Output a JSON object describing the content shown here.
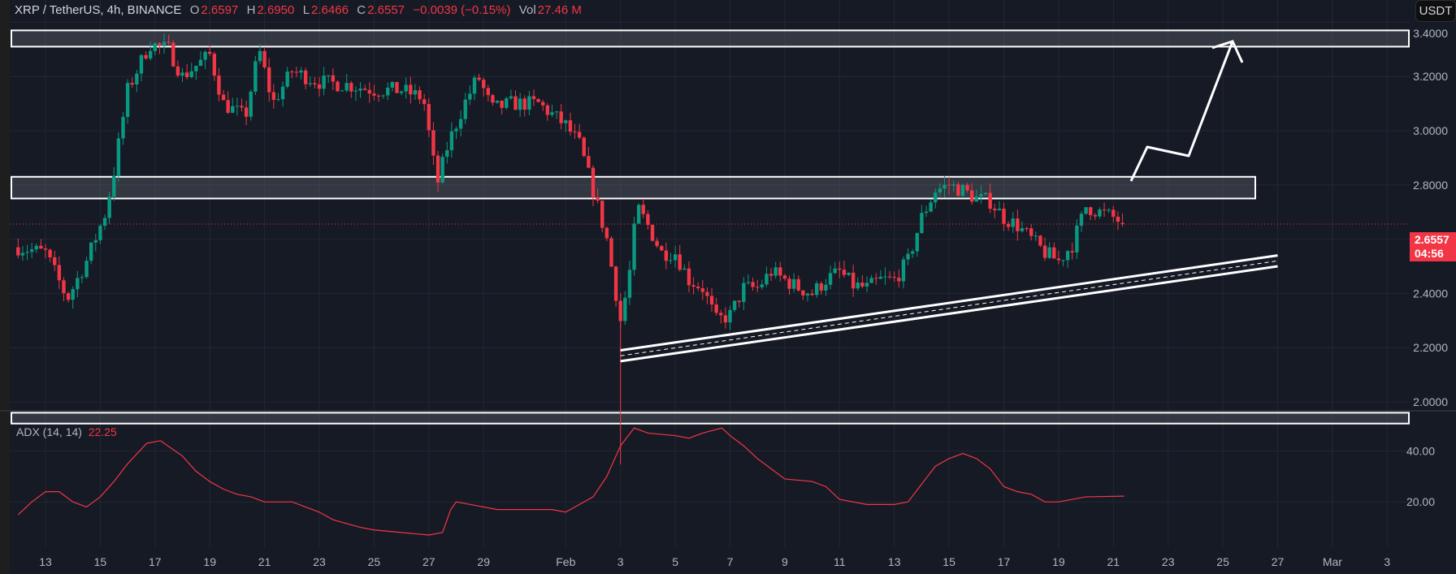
{
  "header": {
    "symbol": "XRP / TetherUS, 4h, BINANCE",
    "o_label": "O",
    "open": "2.6597",
    "h_label": "H",
    "high": "2.6950",
    "l_label": "L",
    "low": "2.6466",
    "c_label": "C",
    "close": "2.6557",
    "change": "−0.0039 (−0.15%)",
    "vol_label": "Vol",
    "volume": "27.46 M"
  },
  "currency_button": "USDT",
  "last_price": {
    "value": "2.6557",
    "countdown": "04:56"
  },
  "indicator": {
    "label": "ADX (14, 14)",
    "value": "22.25"
  },
  "colors": {
    "up": "#089981",
    "down": "#f23645",
    "adx": "#f23645",
    "bg": "#161a25",
    "grid": "#232734"
  },
  "chart_data": [
    {
      "type": "candlestick",
      "interval": "4h",
      "note": "approximate close path (day number: Jan d = d, Feb d = 31+d)",
      "close_path": [
        [
          12,
          2.57
        ],
        [
          13,
          2.55
        ],
        [
          13.8,
          2.38
        ],
        [
          14.5,
          2.52
        ],
        [
          15.2,
          2.7
        ],
        [
          15.5,
          2.85
        ],
        [
          16,
          3.15
        ],
        [
          16.8,
          3.32
        ],
        [
          17.5,
          3.3
        ],
        [
          18,
          3.2
        ],
        [
          19,
          3.28
        ],
        [
          19.5,
          3.1
        ],
        [
          20.3,
          3.05
        ],
        [
          20.8,
          3.3
        ],
        [
          21.3,
          3.1
        ],
        [
          22,
          3.22
        ],
        [
          23,
          3.18
        ],
        [
          24,
          3.17
        ],
        [
          25,
          3.15
        ],
        [
          26,
          3.15
        ],
        [
          26.8,
          3.12
        ],
        [
          27.3,
          2.8
        ],
        [
          27.7,
          2.95
        ],
        [
          28.3,
          3.1
        ],
        [
          28.8,
          3.2
        ],
        [
          29.3,
          3.08
        ],
        [
          30,
          3.1
        ],
        [
          31,
          3.1
        ],
        [
          32,
          3.02
        ],
        [
          32.5,
          2.95
        ],
        [
          33,
          2.78
        ],
        [
          33.5,
          2.6
        ],
        [
          34,
          2.3
        ],
        [
          34.3,
          2.45
        ],
        [
          34.6,
          2.72
        ],
        [
          35,
          2.65
        ],
        [
          35.5,
          2.55
        ],
        [
          36,
          2.55
        ],
        [
          36.5,
          2.45
        ],
        [
          37,
          2.42
        ],
        [
          37.5,
          2.3
        ],
        [
          38,
          2.32
        ],
        [
          38.5,
          2.42
        ],
        [
          39,
          2.42
        ],
        [
          39.5,
          2.48
        ],
        [
          40,
          2.45
        ],
        [
          40.5,
          2.42
        ],
        [
          41,
          2.4
        ],
        [
          41.5,
          2.45
        ],
        [
          42,
          2.48
        ],
        [
          42.5,
          2.43
        ],
        [
          43,
          2.42
        ],
        [
          43.5,
          2.45
        ],
        [
          44,
          2.45
        ],
        [
          44.5,
          2.52
        ],
        [
          45,
          2.68
        ],
        [
          45.5,
          2.78
        ],
        [
          46,
          2.8
        ],
        [
          46.5,
          2.78
        ],
        [
          47,
          2.75
        ],
        [
          47.5,
          2.74
        ],
        [
          48,
          2.68
        ],
        [
          48.5,
          2.65
        ],
        [
          49,
          2.6
        ],
        [
          49.5,
          2.55
        ],
        [
          50,
          2.52
        ],
        [
          50.5,
          2.58
        ],
        [
          51,
          2.72
        ],
        [
          51.5,
          2.7
        ],
        [
          52,
          2.68
        ],
        [
          52.4,
          2.6557
        ]
      ],
      "y_ticks": [
        "3.4000",
        "3.2000",
        "3.0000",
        "2.8000",
        "2.4000",
        "2.2000",
        "2.0000"
      ],
      "y_tick_values": [
        3.4,
        3.2,
        3.0,
        2.8,
        2.4,
        2.2,
        2.0
      ],
      "x_ticks": [
        "13",
        "15",
        "17",
        "19",
        "21",
        "23",
        "25",
        "27",
        "29",
        "Feb",
        "3",
        "5",
        "7",
        "9",
        "11",
        "13",
        "15",
        "17",
        "19",
        "21",
        "23",
        "25",
        "27",
        "Mar",
        "3"
      ],
      "x_tick_days": [
        13,
        15,
        17,
        19,
        21,
        23,
        25,
        27,
        29,
        32,
        34,
        36,
        38,
        40,
        42,
        44,
        46,
        48,
        50,
        52,
        54,
        56,
        58,
        60,
        62
      ],
      "zones": [
        [
          3.31,
          3.37
        ],
        [
          2.75,
          2.83
        ],
        [
          1.92,
          1.96
        ]
      ],
      "trend_channel": {
        "start_day": 34,
        "end_day": 58,
        "upper": [
          2.19,
          2.54
        ],
        "lower": [
          2.15,
          2.5
        ]
      }
    },
    {
      "type": "line",
      "name": "ADX (14, 14)",
      "y_ticks": [
        "40.00",
        "20.00"
      ],
      "y_tick_values": [
        40,
        20
      ],
      "points": [
        [
          12,
          15
        ],
        [
          12.5,
          20
        ],
        [
          13,
          24
        ],
        [
          13.5,
          24
        ],
        [
          14,
          20
        ],
        [
          14.5,
          18
        ],
        [
          15,
          22
        ],
        [
          15.5,
          28
        ],
        [
          16,
          35
        ],
        [
          16.7,
          43
        ],
        [
          17.2,
          44
        ],
        [
          18,
          38
        ],
        [
          18.5,
          32
        ],
        [
          19,
          28
        ],
        [
          19.5,
          25
        ],
        [
          20,
          23
        ],
        [
          20.5,
          22
        ],
        [
          21,
          20
        ],
        [
          22,
          20
        ],
        [
          23,
          16
        ],
        [
          23.5,
          13
        ],
        [
          24.5,
          10
        ],
        [
          25,
          9
        ],
        [
          26,
          8
        ],
        [
          27,
          7
        ],
        [
          27.5,
          8
        ],
        [
          27.8,
          17
        ],
        [
          28,
          20
        ],
        [
          28.5,
          19
        ],
        [
          29.5,
          17
        ],
        [
          30.5,
          17
        ],
        [
          31.5,
          17
        ],
        [
          32,
          16
        ],
        [
          33,
          22
        ],
        [
          33.5,
          30
        ],
        [
          34,
          42
        ],
        [
          34.5,
          49
        ],
        [
          35,
          47
        ],
        [
          36,
          46
        ],
        [
          36.5,
          45
        ],
        [
          37,
          47
        ],
        [
          37.7,
          49
        ],
        [
          38,
          46
        ],
        [
          38.5,
          42
        ],
        [
          39,
          37
        ],
        [
          39.5,
          33
        ],
        [
          40,
          29
        ],
        [
          41,
          28
        ],
        [
          41.5,
          26
        ],
        [
          42,
          21
        ],
        [
          43,
          19
        ],
        [
          44,
          19
        ],
        [
          44.5,
          20
        ],
        [
          45,
          27
        ],
        [
          45.5,
          34
        ],
        [
          46,
          37
        ],
        [
          46.5,
          39
        ],
        [
          47,
          37
        ],
        [
          47.5,
          33
        ],
        [
          48,
          26
        ],
        [
          48.5,
          24
        ],
        [
          49,
          23
        ],
        [
          49.5,
          20
        ],
        [
          50,
          20
        ],
        [
          51,
          22
        ],
        [
          52.4,
          22.25
        ]
      ]
    }
  ]
}
